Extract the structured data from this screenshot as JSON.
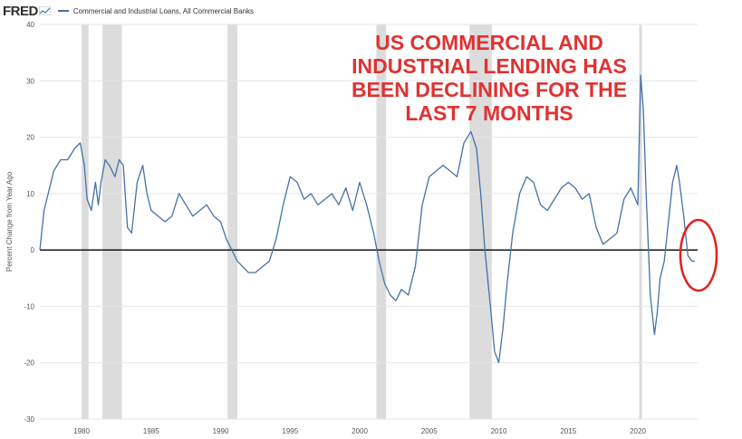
{
  "header": {
    "logo_text": "FRED",
    "logo_icon": "fred-chart-icon",
    "legend_label": "Commercial and Industrial Loans, All Commercial Banks"
  },
  "annotation": {
    "lines": [
      "US COMMERCIAL AND",
      "INDUSTRIAL LENDING HAS",
      "BEEN DECLINING FOR THE",
      "LAST 7 MONTHS"
    ],
    "color": "#e03232",
    "highlight": "red-ellipse-around-latest-values"
  },
  "colors": {
    "series": "#4572a7",
    "recession": "#dcdcdc",
    "zero_line": "#000000",
    "grid": "#e6e6e6"
  },
  "chart_data": {
    "type": "line",
    "title": "",
    "xlabel": "",
    "ylabel": "Percent Change from Year Ago",
    "xlim": [
      1977.0,
      2024.3
    ],
    "ylim": [
      -30,
      40
    ],
    "x_ticks": [
      1980,
      1985,
      1990,
      1995,
      2000,
      2005,
      2010,
      2015,
      2020
    ],
    "y_ticks": [
      -30,
      -20,
      -10,
      0,
      10,
      20,
      30,
      40
    ],
    "grid": "horizontal",
    "reference_line": 0,
    "recessions": [
      [
        1980.0,
        1980.5
      ],
      [
        1981.5,
        1982.9
      ],
      [
        1990.5,
        1991.2
      ],
      [
        2001.2,
        2001.9
      ],
      [
        2007.9,
        2009.5
      ],
      [
        2020.1,
        2020.3
      ]
    ],
    "series": [
      {
        "name": "Commercial and Industrial Loans, All Commercial Banks",
        "x": [
          1977.0,
          1977.3,
          1977.6,
          1978.0,
          1978.5,
          1979.0,
          1979.5,
          1979.9,
          1980.2,
          1980.4,
          1980.7,
          1981.0,
          1981.2,
          1981.4,
          1981.7,
          1982.0,
          1982.4,
          1982.7,
          1983.0,
          1983.3,
          1983.6,
          1984.0,
          1984.4,
          1984.7,
          1985.0,
          1985.5,
          1986.0,
          1986.5,
          1987.0,
          1987.5,
          1988.0,
          1988.5,
          1989.0,
          1989.5,
          1990.0,
          1990.4,
          1990.8,
          1991.2,
          1991.6,
          1992.0,
          1992.5,
          1993.0,
          1993.5,
          1994.0,
          1994.5,
          1995.0,
          1995.5,
          1996.0,
          1996.5,
          1997.0,
          1997.5,
          1998.0,
          1998.5,
          1999.0,
          1999.5,
          2000.0,
          2000.5,
          2001.0,
          2001.4,
          2001.8,
          2002.2,
          2002.6,
          2003.0,
          2003.5,
          2004.0,
          2004.5,
          2005.0,
          2005.5,
          2006.0,
          2006.5,
          2007.0,
          2007.5,
          2008.0,
          2008.4,
          2008.7,
          2009.0,
          2009.4,
          2009.7,
          2010.0,
          2010.3,
          2010.6,
          2011.0,
          2011.5,
          2012.0,
          2012.5,
          2013.0,
          2013.5,
          2014.0,
          2014.5,
          2015.0,
          2015.5,
          2016.0,
          2016.5,
          2017.0,
          2017.5,
          2018.0,
          2018.5,
          2019.0,
          2019.5,
          2020.0,
          2020.2,
          2020.4,
          2020.6,
          2020.9,
          2021.2,
          2021.4,
          2021.6,
          2021.9,
          2022.2,
          2022.5,
          2022.8,
          2023.0,
          2023.3,
          2023.6,
          2023.9,
          2024.1
        ],
        "y": [
          0,
          7,
          10,
          14,
          16,
          16,
          18,
          19,
          15,
          9,
          7,
          12,
          8,
          12,
          16,
          15,
          13,
          16,
          15,
          4,
          3,
          12,
          15,
          10,
          7,
          6,
          5,
          6,
          10,
          8,
          6,
          7,
          8,
          6,
          5,
          2,
          0,
          -2,
          -3,
          -4,
          -4,
          -3,
          -2,
          2,
          8,
          13,
          12,
          9,
          10,
          8,
          9,
          10,
          8,
          11,
          7,
          12,
          8,
          3,
          -2,
          -6,
          -8,
          -9,
          -7,
          -8,
          -3,
          8,
          13,
          14,
          15,
          14,
          13,
          19,
          21,
          18,
          10,
          0,
          -10,
          -18,
          -20,
          -14,
          -6,
          3,
          10,
          13,
          12,
          8,
          7,
          9,
          11,
          12,
          11,
          9,
          10,
          4,
          1,
          2,
          3,
          9,
          11,
          8,
          31,
          25,
          10,
          -8,
          -15,
          -11,
          -5,
          -2,
          5,
          12,
          15,
          12,
          6,
          -1,
          -2,
          -2
        ]
      }
    ]
  }
}
